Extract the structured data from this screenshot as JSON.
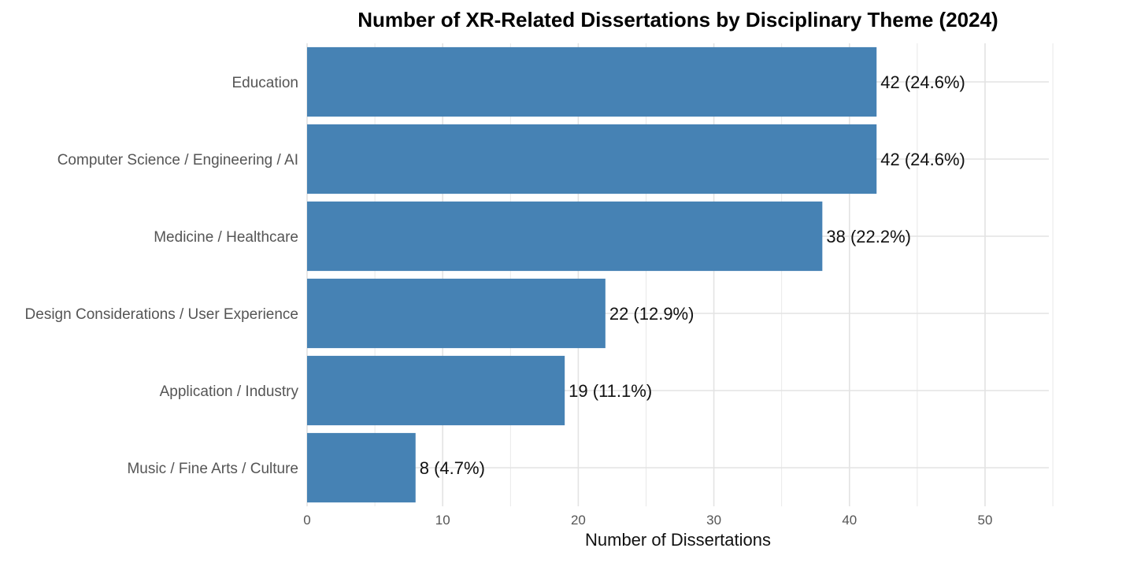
{
  "chart_data": {
    "type": "bar",
    "orientation": "horizontal",
    "title": "Number of XR-Related Dissertations by Disciplinary Theme (2024)",
    "xlabel": "Number of Dissertations",
    "ylabel": "",
    "categories": [
      "Education",
      "Computer Science / Engineering / AI",
      "Medicine / Healthcare",
      "Design Considerations / User Experience",
      "Application / Industry",
      "Music / Fine Arts / Culture"
    ],
    "values": [
      42,
      42,
      38,
      22,
      19,
      8
    ],
    "data_labels": [
      "42 (24.6%)",
      "42 (24.6%)",
      "38 (22.2%)",
      "22 (12.9%)",
      "19 (11.1%)",
      "8 (4.7%)"
    ],
    "xlim": [
      0,
      55
    ],
    "xticks": [
      0,
      10,
      20,
      30,
      40,
      50
    ],
    "grid": true,
    "bar_color": "#4682b4",
    "grid_color": "#e3e3e3"
  }
}
